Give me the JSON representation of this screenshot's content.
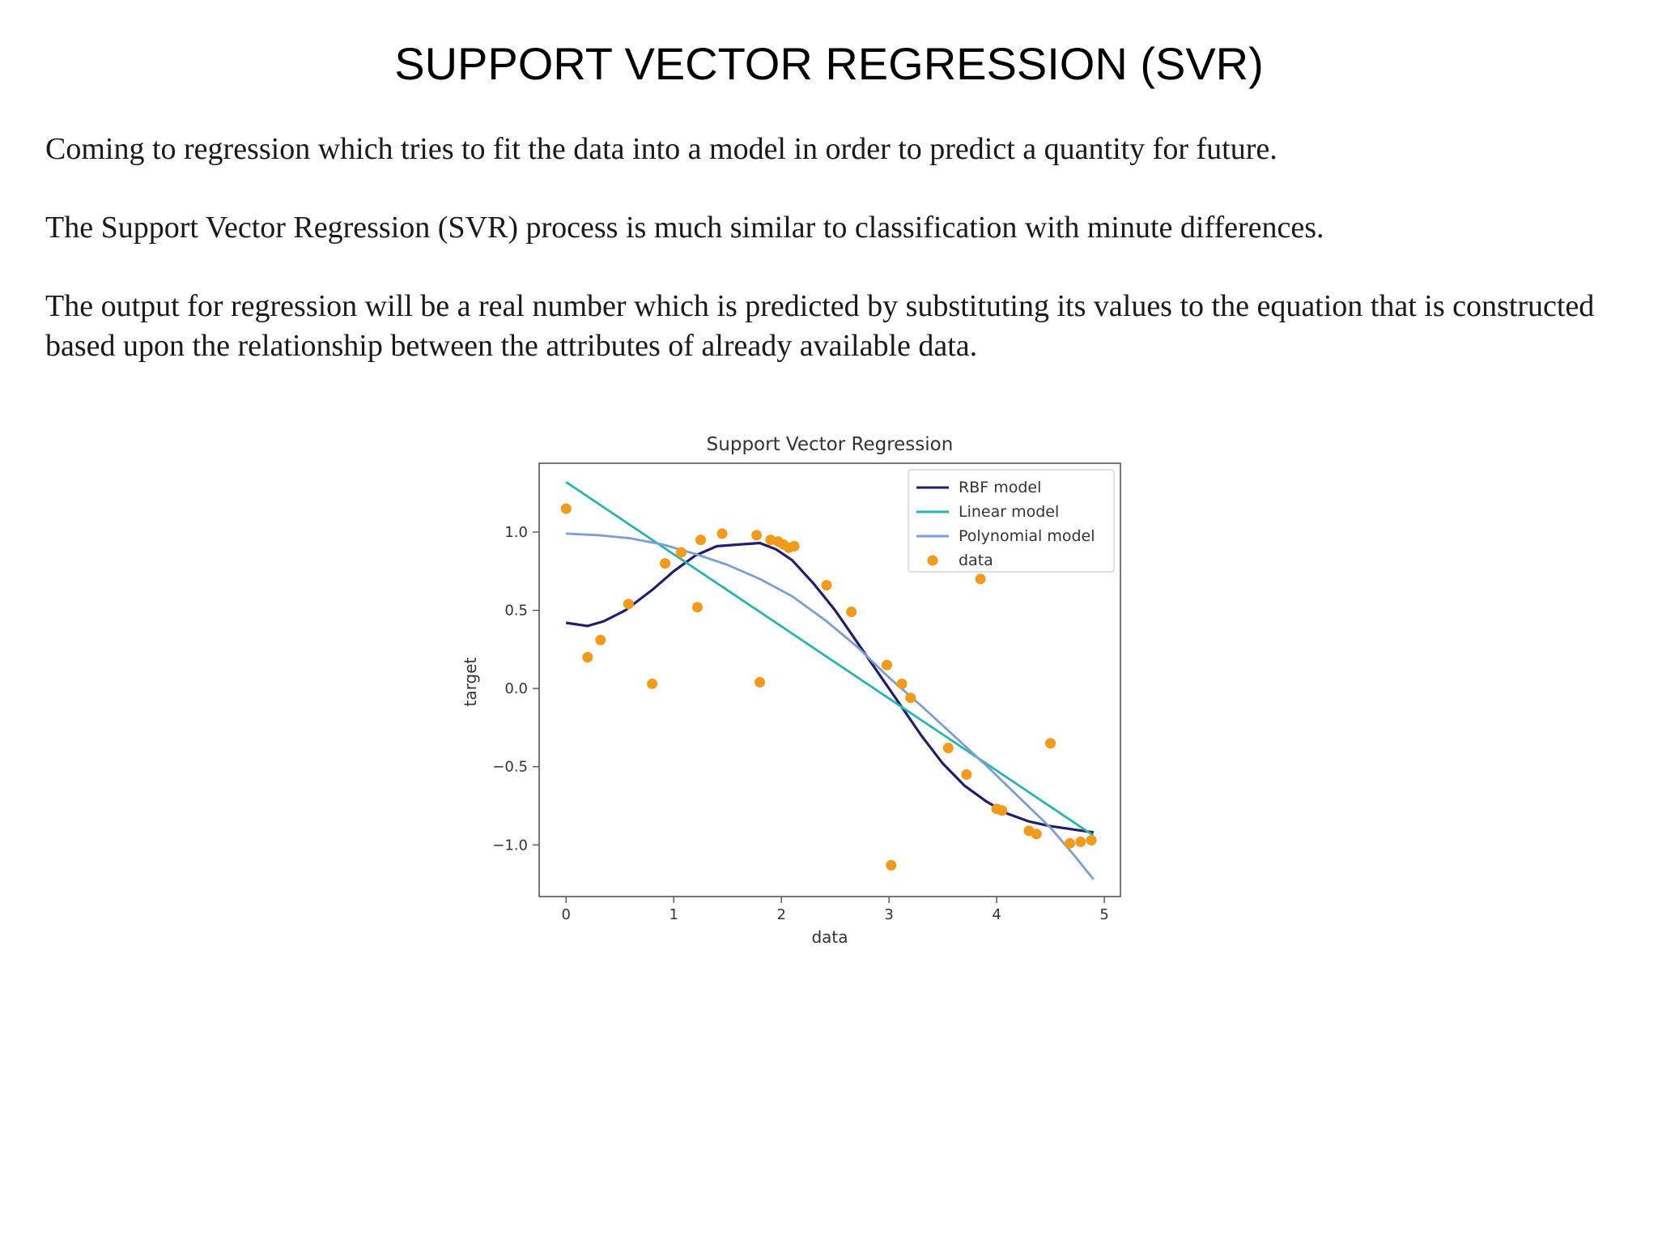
{
  "slide": {
    "title": "SUPPORT VECTOR REGRESSION (SVR)",
    "paragraphs": [
      "Coming to regression which tries to fit the data into a model in order to predict a quantity for future.",
      "The Support Vector Regression (SVR) process is much similar to classification with minute differences.",
      "The output for regression will be a real number which is predicted by substituting its values to the equation that is constructed based upon the relationship between the attributes of already available data."
    ]
  },
  "chart_data": {
    "type": "scatter",
    "title": "Support Vector Regression",
    "xlabel": "data",
    "ylabel": "target",
    "xlim": [
      -0.25,
      5.15
    ],
    "ylim": [
      -1.33,
      1.44
    ],
    "xticks": [
      0,
      1,
      2,
      3,
      4,
      5
    ],
    "xtick_labels": [
      "0",
      "1",
      "2",
      "3",
      "4",
      "5"
    ],
    "yticks": [
      -1.0,
      -0.5,
      0.0,
      0.5,
      1.0
    ],
    "ytick_labels": [
      "−1.0",
      "−0.5",
      "0.0",
      "0.5",
      "1.0"
    ],
    "grid": false,
    "legend_position": "top-right",
    "colors": {
      "rbf": "#1f1f6e",
      "linear": "#2bb5b0",
      "polynomial": "#7b9fd4",
      "data": "#f29a1c",
      "axes": "#555555"
    },
    "series": [
      {
        "name": "RBF model",
        "kind": "line",
        "x": [
          0.0,
          0.2,
          0.35,
          0.55,
          0.8,
          1.0,
          1.2,
          1.4,
          1.6,
          1.8,
          1.95,
          2.1,
          2.3,
          2.5,
          2.7,
          2.9,
          3.1,
          3.3,
          3.5,
          3.7,
          3.9,
          4.1,
          4.3,
          4.5,
          4.7,
          4.9
        ],
        "y": [
          0.42,
          0.4,
          0.43,
          0.5,
          0.63,
          0.75,
          0.85,
          0.91,
          0.92,
          0.93,
          0.89,
          0.82,
          0.67,
          0.5,
          0.3,
          0.1,
          -0.1,
          -0.3,
          -0.48,
          -0.62,
          -0.72,
          -0.8,
          -0.85,
          -0.88,
          -0.9,
          -0.92
        ]
      },
      {
        "name": "Linear model",
        "kind": "line",
        "x": [
          0.0,
          4.9
        ],
        "y": [
          1.32,
          -0.94
        ]
      },
      {
        "name": "Polynomial model",
        "kind": "line",
        "x": [
          0.0,
          0.3,
          0.6,
          0.9,
          1.2,
          1.5,
          1.8,
          2.1,
          2.4,
          2.7,
          3.0,
          3.3,
          3.6,
          3.9,
          4.2,
          4.5,
          4.7,
          4.9
        ],
        "y": [
          0.99,
          0.98,
          0.96,
          0.92,
          0.86,
          0.79,
          0.7,
          0.59,
          0.44,
          0.27,
          0.07,
          -0.11,
          -0.3,
          -0.49,
          -0.69,
          -0.89,
          -1.05,
          -1.22
        ]
      },
      {
        "name": "data",
        "kind": "scatter",
        "x": [
          0.0,
          0.2,
          0.32,
          0.58,
          0.8,
          0.92,
          1.07,
          1.22,
          1.25,
          1.45,
          1.77,
          1.8,
          1.9,
          1.97,
          2.02,
          2.07,
          2.12,
          2.42,
          2.65,
          2.98,
          3.02,
          3.12,
          3.2,
          3.55,
          3.72,
          3.85,
          4.0,
          4.05,
          4.3,
          4.37,
          4.5,
          4.68,
          4.78,
          4.88
        ],
        "y": [
          1.15,
          0.2,
          0.31,
          0.54,
          0.03,
          0.8,
          0.87,
          0.52,
          0.95,
          0.99,
          0.98,
          0.04,
          0.95,
          0.94,
          0.92,
          0.9,
          0.91,
          0.66,
          0.49,
          0.15,
          -1.13,
          0.03,
          -0.06,
          -0.38,
          -0.55,
          0.7,
          -0.77,
          -0.78,
          -0.91,
          -0.93,
          -0.35,
          -0.99,
          -0.98,
          -0.97
        ]
      }
    ]
  }
}
